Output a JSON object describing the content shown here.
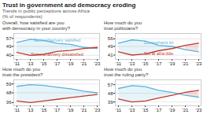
{
  "title": "Trust in government and democracy eroding",
  "subtitle": "Trends in public perceptions across Africa\n(% of respondents)",
  "chart_data": [
    {
      "type": "line",
      "title": "Overall, how satisfied are you\nwith democracy in your country?",
      "categories": [
        "'11",
        "'13",
        "'15",
        "'17",
        "'19",
        "'21",
        "'23"
      ],
      "series": [
        {
          "name": "Somewhat/very satisfied",
          "color": "#5ab4e0",
          "values": [
            53,
            56,
            55,
            52,
            51,
            48,
            47
          ]
        },
        {
          "name": "Somewhat/very dissatisfied",
          "color": "#c0392b",
          "values": [
            43,
            40,
            41,
            44,
            45,
            47,
            48
          ]
        }
      ],
      "ylim": [
        36,
        62
      ],
      "yticks": [
        40,
        49,
        57
      ],
      "grid": true
    },
    {
      "type": "line",
      "title": "How much do you\ntrust politicians?",
      "categories": [
        "'11",
        "'13",
        "'15",
        "'17",
        "'19",
        "'21",
        "'23"
      ],
      "series": [
        {
          "name": "Somewhat/a lot",
          "color": "#5ab4e0",
          "values": [
            52,
            55,
            54,
            50,
            49,
            46,
            44
          ]
        },
        {
          "name": "Not at all/a little",
          "color": "#c0392b",
          "values": [
            44,
            41,
            42,
            45,
            47,
            50,
            52
          ]
        }
      ],
      "ylim": [
        37,
        61
      ],
      "yticks": [
        41,
        49,
        56
      ],
      "grid": true
    },
    {
      "type": "line",
      "title": "How much do you\ntrust the president?",
      "categories": [
        "'11",
        "'13",
        "'15",
        "'17",
        "'19",
        "'21",
        "'23"
      ],
      "series": [
        {
          "color": "#5ab4e0",
          "values": [
            56,
            58,
            57,
            55,
            53,
            50,
            48
          ]
        },
        {
          "color": "#c0392b",
          "values": [
            38,
            36,
            38,
            40,
            42,
            44,
            46
          ]
        }
      ],
      "ylim": [
        32,
        64
      ],
      "yticks": [
        36,
        48,
        59
      ],
      "grid": true
    },
    {
      "type": "line",
      "title": "How much do you\ntrust the ruling party?",
      "categories": [
        "'11",
        "'13",
        "'15",
        "'17",
        "'19",
        "'21",
        "'23"
      ],
      "series": [
        {
          "color": "#5ab4e0",
          "values": [
            53,
            56,
            55,
            51,
            49,
            46,
            44
          ]
        },
        {
          "color": "#c0392b",
          "values": [
            42,
            39,
            40,
            43,
            46,
            49,
            51
          ]
        }
      ],
      "ylim": [
        35,
        62
      ],
      "yticks": [
        39,
        48,
        57
      ],
      "grid": true
    }
  ]
}
